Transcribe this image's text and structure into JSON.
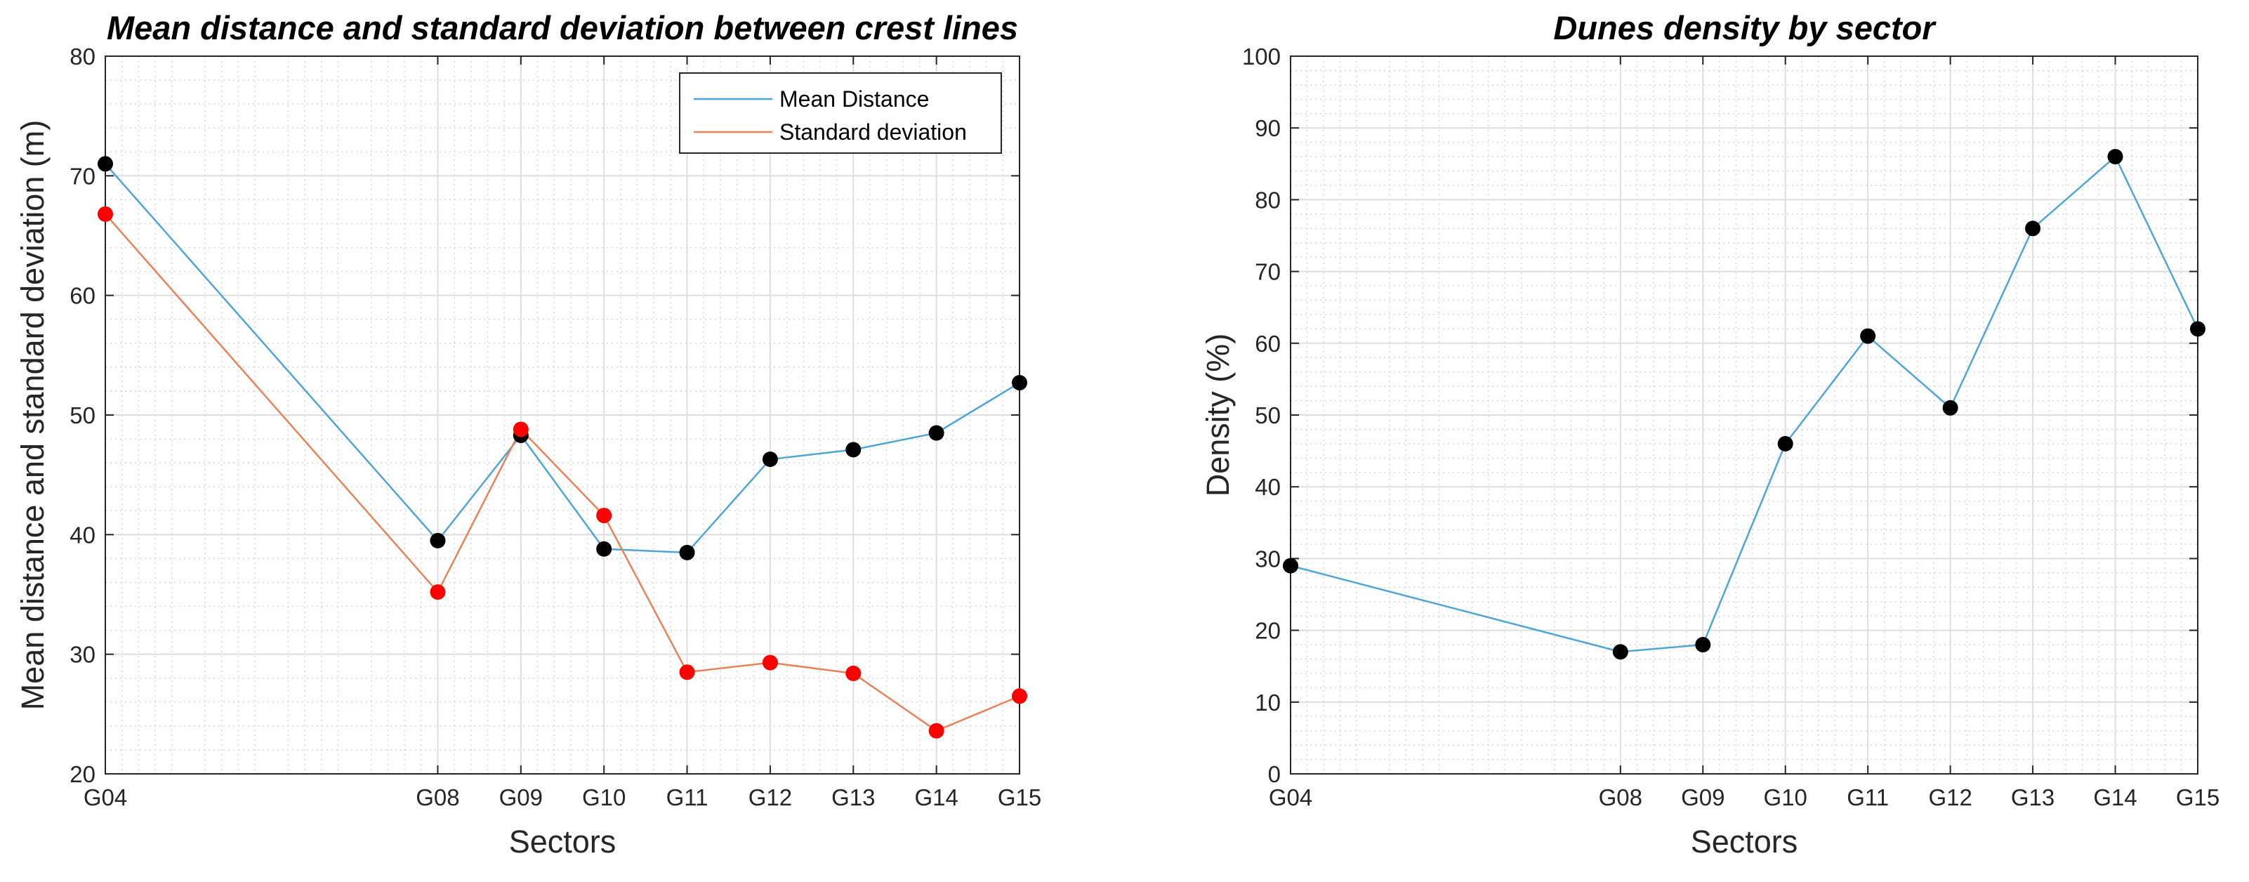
{
  "chart_data": [
    {
      "type": "line",
      "title": "Mean distance and standard deviation between crest lines",
      "xlabel": "Sectors",
      "ylabel": "Mean distance and standard deviation (m)",
      "categories": [
        "G04",
        "G08",
        "G09",
        "G10",
        "G11",
        "G12",
        "G13",
        "G14",
        "G15"
      ],
      "x": [
        4,
        8,
        9,
        10,
        11,
        12,
        13,
        14,
        15
      ],
      "xlim": [
        4,
        15
      ],
      "ylim": [
        20,
        80
      ],
      "yticks": [
        20,
        30,
        40,
        50,
        60,
        70,
        80
      ],
      "grid": true,
      "minor_grid": true,
      "legend": "top-right",
      "series": [
        {
          "name": "Mean Distance",
          "color": "#4fa5d8",
          "marker_color": "#000000",
          "values": [
            71.0,
            39.5,
            48.3,
            38.8,
            38.5,
            46.3,
            47.1,
            48.5,
            52.7
          ]
        },
        {
          "name": "Standard deviation",
          "color": "#e8825a",
          "marker_color": "#ff0000",
          "values": [
            66.8,
            35.2,
            48.8,
            41.6,
            28.5,
            29.3,
            28.4,
            23.6,
            26.5
          ]
        }
      ]
    },
    {
      "type": "line",
      "title": "Dunes density by sector",
      "xlabel": "Sectors",
      "ylabel": "Density (%)",
      "categories": [
        "G04",
        "G08",
        "G09",
        "G10",
        "G11",
        "G12",
        "G13",
        "G14",
        "G15"
      ],
      "x": [
        4,
        8,
        9,
        10,
        11,
        12,
        13,
        14,
        15
      ],
      "xlim": [
        4,
        15
      ],
      "ylim": [
        0,
        100
      ],
      "yticks": [
        0,
        10,
        20,
        30,
        40,
        50,
        60,
        70,
        80,
        90,
        100
      ],
      "grid": true,
      "minor_grid": true,
      "series": [
        {
          "name": "Density",
          "color": "#4fa5d8",
          "marker_color": "#000000",
          "values": [
            29,
            17,
            18,
            46,
            61,
            51,
            76,
            86,
            62
          ]
        }
      ]
    }
  ]
}
